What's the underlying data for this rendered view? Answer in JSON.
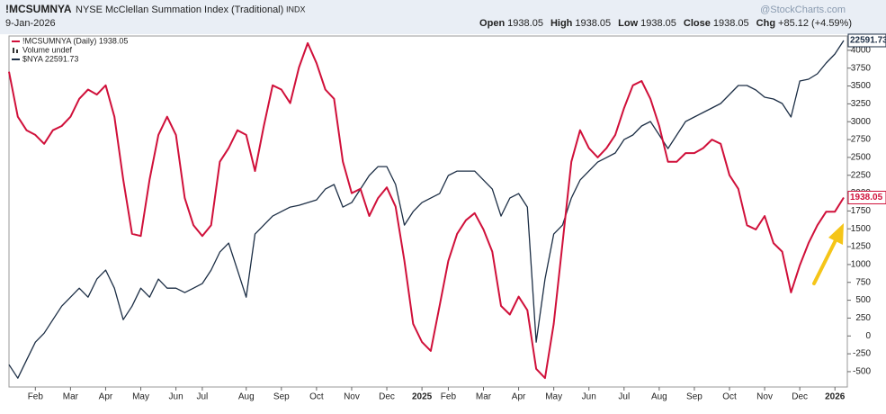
{
  "header": {
    "symbol": "!MCSUMNYA",
    "name": "NYSE McClellan Summation Index (Traditional)",
    "exchange": "INDX",
    "brand": "@StockCharts.com",
    "date": "9-Jan-2026",
    "quote": [
      {
        "label": "Open",
        "value": 1938.05
      },
      {
        "label": "High",
        "value": 1938.05
      },
      {
        "label": "Low",
        "value": 1938.05
      },
      {
        "label": "Close",
        "value": 1938.05
      },
      {
        "label": "Chg",
        "value": "+85.12 (+4.59%)"
      }
    ]
  },
  "chart_data": {
    "type": "line",
    "categories": [
      null,
      null,
      null,
      "Feb",
      null,
      null,
      null,
      "Mar",
      null,
      null,
      null,
      "Apr",
      null,
      null,
      null,
      "May",
      null,
      null,
      null,
      "Jun",
      null,
      null,
      "Jul",
      null,
      null,
      null,
      null,
      "Aug",
      null,
      null,
      null,
      "Sep",
      null,
      null,
      null,
      "Oct",
      null,
      null,
      null,
      "Nov",
      null,
      null,
      null,
      "Dec",
      null,
      null,
      null,
      "2025",
      null,
      null,
      "Feb",
      null,
      null,
      null,
      "Mar",
      null,
      null,
      null,
      "Apr",
      null,
      null,
      null,
      "May",
      null,
      null,
      null,
      "Jun",
      null,
      null,
      null,
      "Jul",
      null,
      null,
      null,
      "Aug",
      null,
      null,
      null,
      "Sep",
      null,
      null,
      null,
      "Oct",
      null,
      null,
      null,
      "Nov",
      null,
      null,
      null,
      "Dec",
      null,
      null,
      null,
      "2026",
      null
    ],
    "series": [
      {
        "name": "!MCSUMNYA (Daily) 1938.05",
        "color": "#d0103a",
        "axis": "y",
        "values": [
          3700,
          3070,
          2880,
          2815,
          2690,
          2880,
          2940,
          3070,
          3320,
          3450,
          3380,
          3510,
          3070,
          2190,
          1430,
          1400,
          2190,
          2815,
          3070,
          2815,
          1930,
          1550,
          1400,
          1550,
          2440,
          2630,
          2880,
          2815,
          2310,
          2940,
          3510,
          3450,
          3260,
          3760,
          4100,
          3820,
          3450,
          3320,
          2440,
          2000,
          2060,
          1680,
          1930,
          2080,
          1810,
          1050,
          170,
          -85,
          -210,
          420,
          1050,
          1430,
          1620,
          1720,
          1490,
          1180,
          420,
          300,
          550,
          360,
          -460,
          -590,
          170,
          1300,
          2440,
          2880,
          2630,
          2500,
          2630,
          2815,
          3190,
          3510,
          3570,
          3320,
          2940,
          2440,
          2440,
          2560,
          2560,
          2630,
          2750,
          2690,
          2250,
          2060,
          1550,
          1490,
          1680,
          1300,
          1180,
          610,
          990,
          1300,
          1550,
          1740,
          1740,
          1938.05
        ]
      },
      {
        "name": "$NYA 22591.73",
        "color": "#1c2e45",
        "axis": "y2",
        "values": [
          17295,
          17074,
          17368,
          17662,
          17810,
          18030,
          18251,
          18398,
          18545,
          18398,
          18693,
          18840,
          18545,
          18030,
          18251,
          18545,
          18398,
          18693,
          18545,
          18545,
          18472,
          18545,
          18619,
          18840,
          19134,
          19281,
          18840,
          18398,
          19428,
          19575,
          19723,
          19796,
          19870,
          19899,
          19943,
          19987,
          20164,
          20238,
          19870,
          19943,
          20164,
          20385,
          20532,
          20532,
          20238,
          19575,
          19796,
          19943,
          20017,
          20090,
          20385,
          20458,
          20458,
          20458,
          20311,
          20164,
          19723,
          20017,
          20090,
          19870,
          17662,
          18693,
          19428,
          19575,
          20017,
          20311,
          20458,
          20605,
          20679,
          20753,
          20973,
          21047,
          21194,
          21268,
          21047,
          20826,
          21047,
          21268,
          21341,
          21415,
          21488,
          21562,
          21709,
          21856,
          21856,
          21783,
          21665,
          21636,
          21562,
          21341,
          21930,
          21959,
          22048,
          22224,
          22371,
          22591.73
        ]
      }
    ],
    "legend_extra": "Volume undef",
    "ylim": [
      -715,
      4200
    ],
    "yticks": [
      -500,
      -250,
      0,
      250,
      500,
      750,
      1000,
      1250,
      1500,
      1750,
      2000,
      2250,
      2500,
      2750,
      3000,
      3250,
      3500,
      3750,
      4000
    ],
    "y2lim": [
      16930,
      22665
    ]
  }
}
